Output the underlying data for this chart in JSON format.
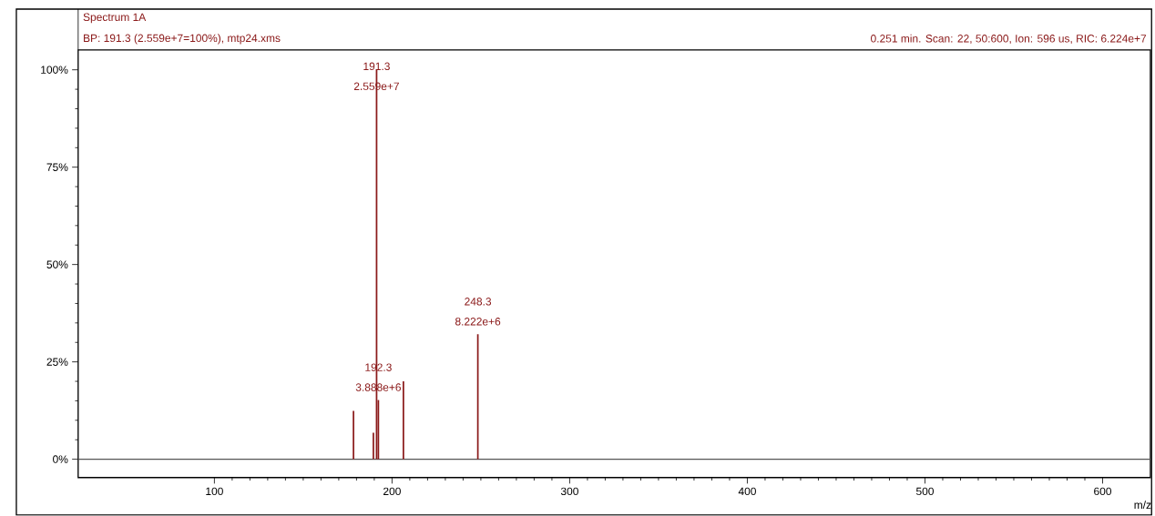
{
  "chart_data": {
    "type": "bar",
    "title": "Spectrum 1A",
    "subtitle": "BP: 191.3 (2.559e+7=100%), mtp24.xms",
    "xlabel": "m/z",
    "x": [
      178.3,
      189.5,
      191.3,
      192.3,
      206.4,
      248.3
    ],
    "values": [
      12.4,
      6.8,
      100,
      15.2,
      20,
      32.1
    ],
    "color": "#8b1a1a",
    "xlim": [
      23.3,
      626.9
    ],
    "ylim": [
      -4.7,
      105.1
    ],
    "xticks": [
      100,
      200,
      300,
      400,
      500,
      600
    ],
    "yticks": [
      {
        "value": 0,
        "label": "0%"
      },
      {
        "value": 25,
        "label": "25%"
      },
      {
        "value": 50,
        "label": "50%"
      },
      {
        "value": 75,
        "label": "75%"
      },
      {
        "value": 100,
        "label": "100%"
      }
    ],
    "ref_lines": [
      {
        "axis": "y",
        "value": 0,
        "color": "#555555"
      }
    ],
    "annotations": [
      "0.251 min. Scan: 22, 50:600, Ion: 596 us, RIC: 6.224e+7",
      {
        "text": "191.3",
        "x": 191.3,
        "y": 100
      },
      {
        "text": "2.559e+7",
        "x": 191.3,
        "y": 100
      },
      {
        "text": "192.3",
        "x": 192.3,
        "y": 15.2
      },
      {
        "text": "3.888e+6",
        "x": 192.3,
        "y": 15.2
      },
      {
        "text": "248.3",
        "x": 248.3,
        "y": 32.1
      },
      {
        "text": "8.222e+6",
        "x": 248.3,
        "y": 32.1
      }
    ]
  }
}
